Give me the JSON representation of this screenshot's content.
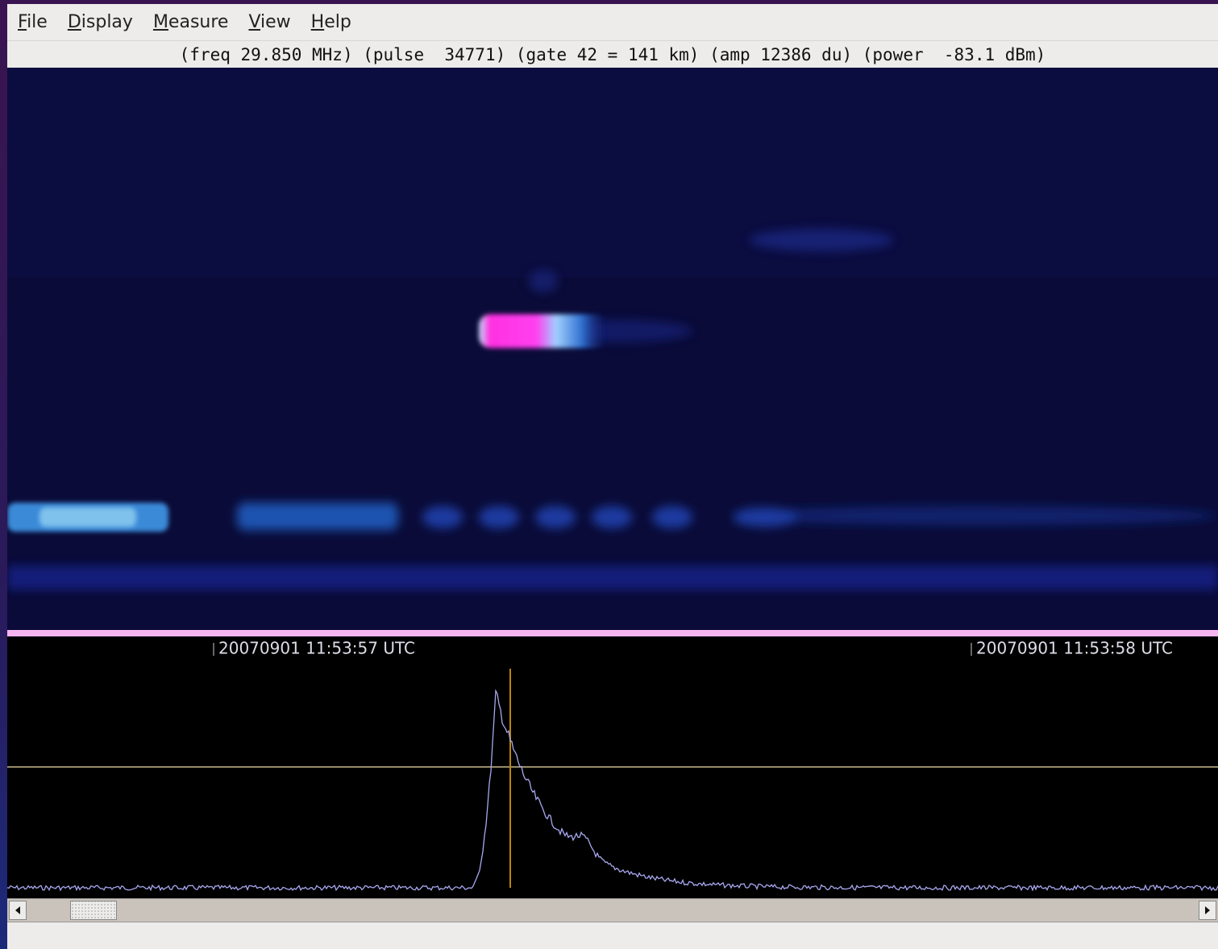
{
  "menu": [
    "File",
    "Display",
    "Measure",
    "View",
    "Help"
  ],
  "status": "(freq 29.850 MHz) (pulse  34771) (gate 42 = 141 km) (amp 12386 du) (power  -83.1 dBm)",
  "timestamps": [
    "20070901 11:53:57 UTC",
    "20070901 11:53:58 UTC"
  ]
}
